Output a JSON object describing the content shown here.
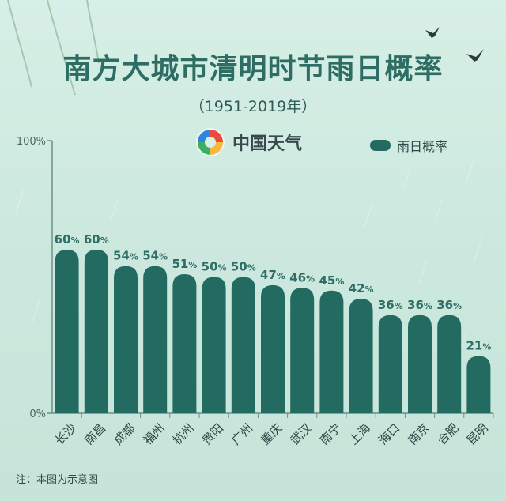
{
  "title": "南方大城市清明时节雨日概率",
  "subtitle": "（1951-2019年）",
  "brand": {
    "name": "中国天气",
    "icon": "china-weather-logo-icon"
  },
  "note": "注：本图为示意图",
  "colors": {
    "bar": "#236a60",
    "axis": "#6e8f8a",
    "label": "#2f6e66",
    "title": "#2d6d64"
  },
  "chart_data": {
    "type": "bar",
    "categories": [
      "长沙",
      "南昌",
      "成都",
      "福州",
      "杭州",
      "贵阳",
      "广州",
      "重庆",
      "武汉",
      "南宁",
      "上海",
      "海口",
      "南京",
      "合肥",
      "昆明"
    ],
    "series": [
      {
        "name": "雨日概率",
        "values": [
          60,
          60,
          54,
          54,
          51,
          50,
          50,
          47,
          46,
          45,
          42,
          36,
          36,
          36,
          21
        ]
      }
    ],
    "ylim": [
      0,
      100
    ],
    "yticks": [
      "0%",
      "100%"
    ],
    "value_suffix": "%",
    "legend": "top-right",
    "grid": false
  }
}
